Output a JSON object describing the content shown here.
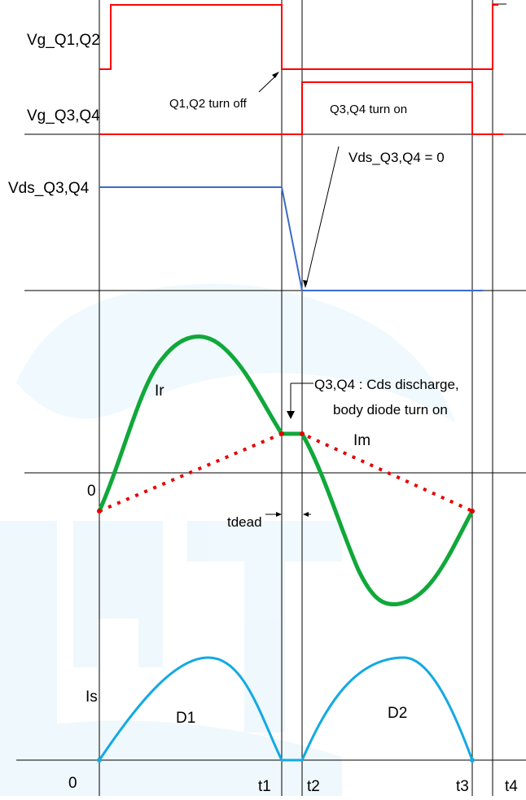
{
  "labels": {
    "vg_q1q2": "Vg_Q1,Q2",
    "vg_q3q4": "Vg_Q3,Q4",
    "vds_q3q4": "Vds_Q3,Q4",
    "ir": "Ir",
    "im": "Im",
    "is": "Is",
    "zero_top": "0",
    "zero_bottom": "0",
    "d1": "D1",
    "d2": "D2",
    "t1": "t1",
    "t2": "t2",
    "t3": "t3",
    "t4": "t4",
    "tdead": "tdead"
  },
  "annotations": {
    "q1q2_off": "Q1,Q2 turn off",
    "q3q4_on": "Q3,Q4 turn on",
    "vds_zero": "Vds_Q3,Q4 = 0",
    "cds_line1": "Q3,Q4 : Cds discharge,",
    "cds_line2": "body diode turn on"
  },
  "colors": {
    "gate": "#ff0000",
    "vds": "#3a6bc8",
    "ir": "#10a83a",
    "im": "#e60000",
    "is": "#13a9e4",
    "watermark": "#e3f4fb"
  }
}
